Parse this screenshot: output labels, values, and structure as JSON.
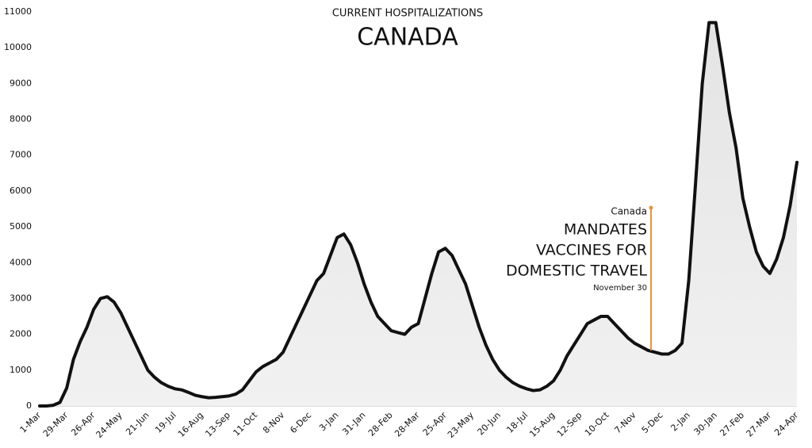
{
  "chart_data": {
    "type": "line",
    "title": "CURRENT HOSPITALIZATIONS",
    "subtitle": "CANADA",
    "annotation": {
      "place": "Canada",
      "lines": [
        "MANDATES",
        "VACCINES FOR",
        "DOMESTIC TRAVEL"
      ],
      "date": "November 30",
      "color": "#e8923c"
    },
    "categories": [
      "1-Mar",
      null,
      null,
      null,
      "29-Mar",
      null,
      null,
      null,
      "26-Apr",
      null,
      null,
      null,
      "24-May",
      null,
      null,
      null,
      "21-Jun",
      null,
      null,
      null,
      "19-Jul",
      null,
      null,
      null,
      "16-Aug",
      null,
      null,
      null,
      "13-Sep",
      null,
      null,
      null,
      "11-Oct",
      null,
      null,
      null,
      "8-Nov",
      null,
      null,
      null,
      "6-Dec",
      null,
      null,
      null,
      "3-Jan",
      null,
      null,
      null,
      "31-Jan",
      null,
      null,
      null,
      "28-Feb",
      null,
      null,
      null,
      "28-Mar",
      null,
      null,
      null,
      "25-Apr",
      null,
      null,
      null,
      "23-May",
      null,
      null,
      null,
      "20-Jun",
      null,
      null,
      null,
      "18-Jul",
      null,
      null,
      null,
      "15-Aug",
      null,
      null,
      null,
      "12-Sep",
      null,
      null,
      null,
      "10-Oct",
      null,
      null,
      null,
      "7-Nov",
      null,
      null,
      null,
      "5-Dec",
      null,
      null,
      null,
      "2-Jan",
      null,
      null,
      null,
      "30-Jan",
      null,
      null,
      null,
      "27-Feb",
      null,
      null,
      null,
      "27-Mar",
      null,
      null,
      null,
      "24-Apr"
    ],
    "series": [
      {
        "name": "Hospitalizations",
        "color": "#111111",
        "values": [
          0,
          0,
          20,
          100,
          500,
          1300,
          1800,
          2200,
          2700,
          3000,
          3050,
          2900,
          2600,
          2200,
          1800,
          1400,
          1000,
          800,
          650,
          550,
          480,
          450,
          380,
          300,
          260,
          230,
          240,
          260,
          280,
          330,
          450,
          700,
          950,
          1100,
          1200,
          1300,
          1500,
          1900,
          2300,
          2700,
          3100,
          3500,
          3700,
          4200,
          4700,
          4800,
          4500,
          4000,
          3400,
          2900,
          2500,
          2300,
          2100,
          2050,
          2000,
          2200,
          2300,
          3000,
          3700,
          4300,
          4400,
          4200,
          3800,
          3400,
          2800,
          2200,
          1700,
          1300,
          1000,
          800,
          650,
          550,
          480,
          430,
          450,
          550,
          700,
          1000,
          1400,
          1700,
          2000,
          2300,
          2400,
          2500,
          2500,
          2300,
          2100,
          1900,
          1750,
          1650,
          1550,
          1500,
          1450,
          1450,
          1550,
          1750,
          3500,
          6200,
          9000,
          10700,
          10700,
          9500,
          8200,
          7200,
          5800,
          5000,
          4300,
          3900,
          3700,
          4100,
          4700,
          5600,
          6800
        ]
      }
    ],
    "ylim": [
      0,
      11000
    ],
    "yticks": [
      0,
      1000,
      2000,
      3000,
      4000,
      5000,
      6000,
      7000,
      8000,
      9000,
      10000,
      11000
    ],
    "grid": false
  }
}
